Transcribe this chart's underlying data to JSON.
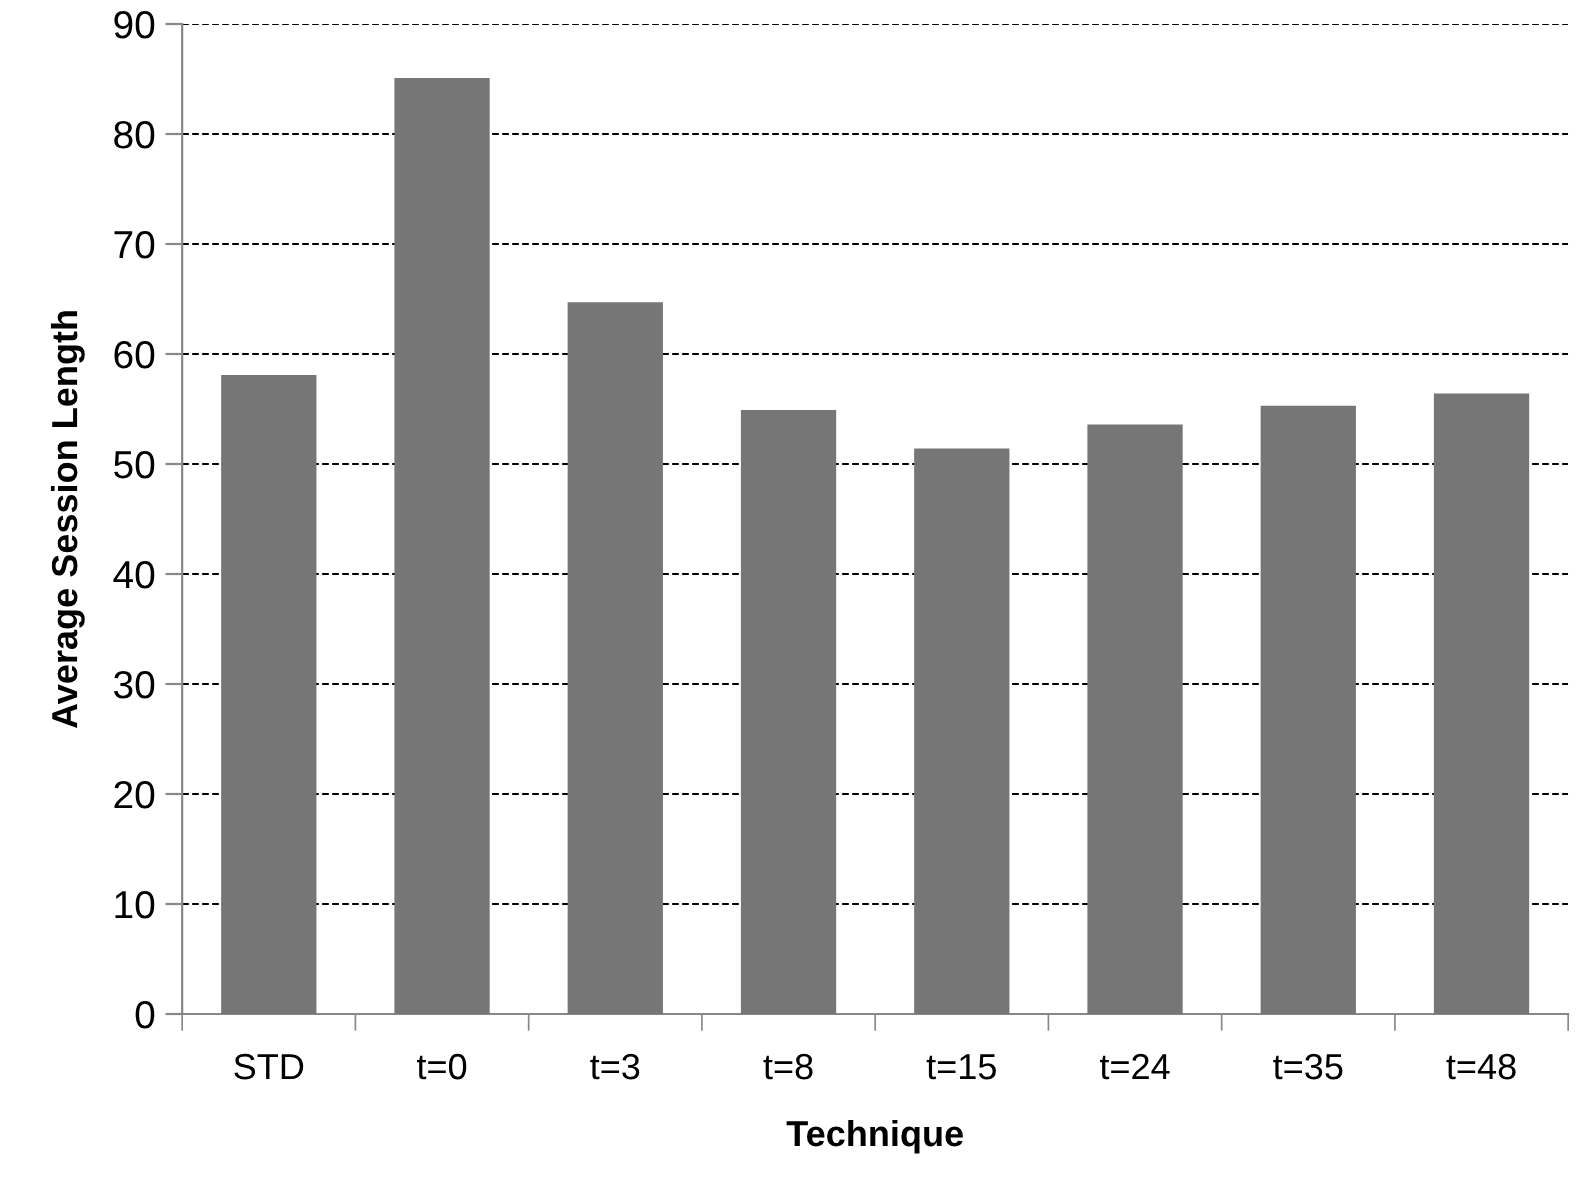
{
  "chart_data": {
    "type": "bar",
    "xlabel": "Technique",
    "ylabel": "Average Session Length",
    "categories": [
      "STD",
      "t=0",
      "t=3",
      "t=8",
      "t=15",
      "t=24",
      "t=35",
      "t=48"
    ],
    "values": [
      58.1,
      85.1,
      64.7,
      54.9,
      51.4,
      53.6,
      55.3,
      56.4
    ],
    "color": "#767676",
    "ylim": [
      0,
      90
    ],
    "yticks": [
      0,
      10,
      20,
      30,
      40,
      50,
      60,
      70,
      80,
      90
    ],
    "grid": "y",
    "legend": false
  }
}
